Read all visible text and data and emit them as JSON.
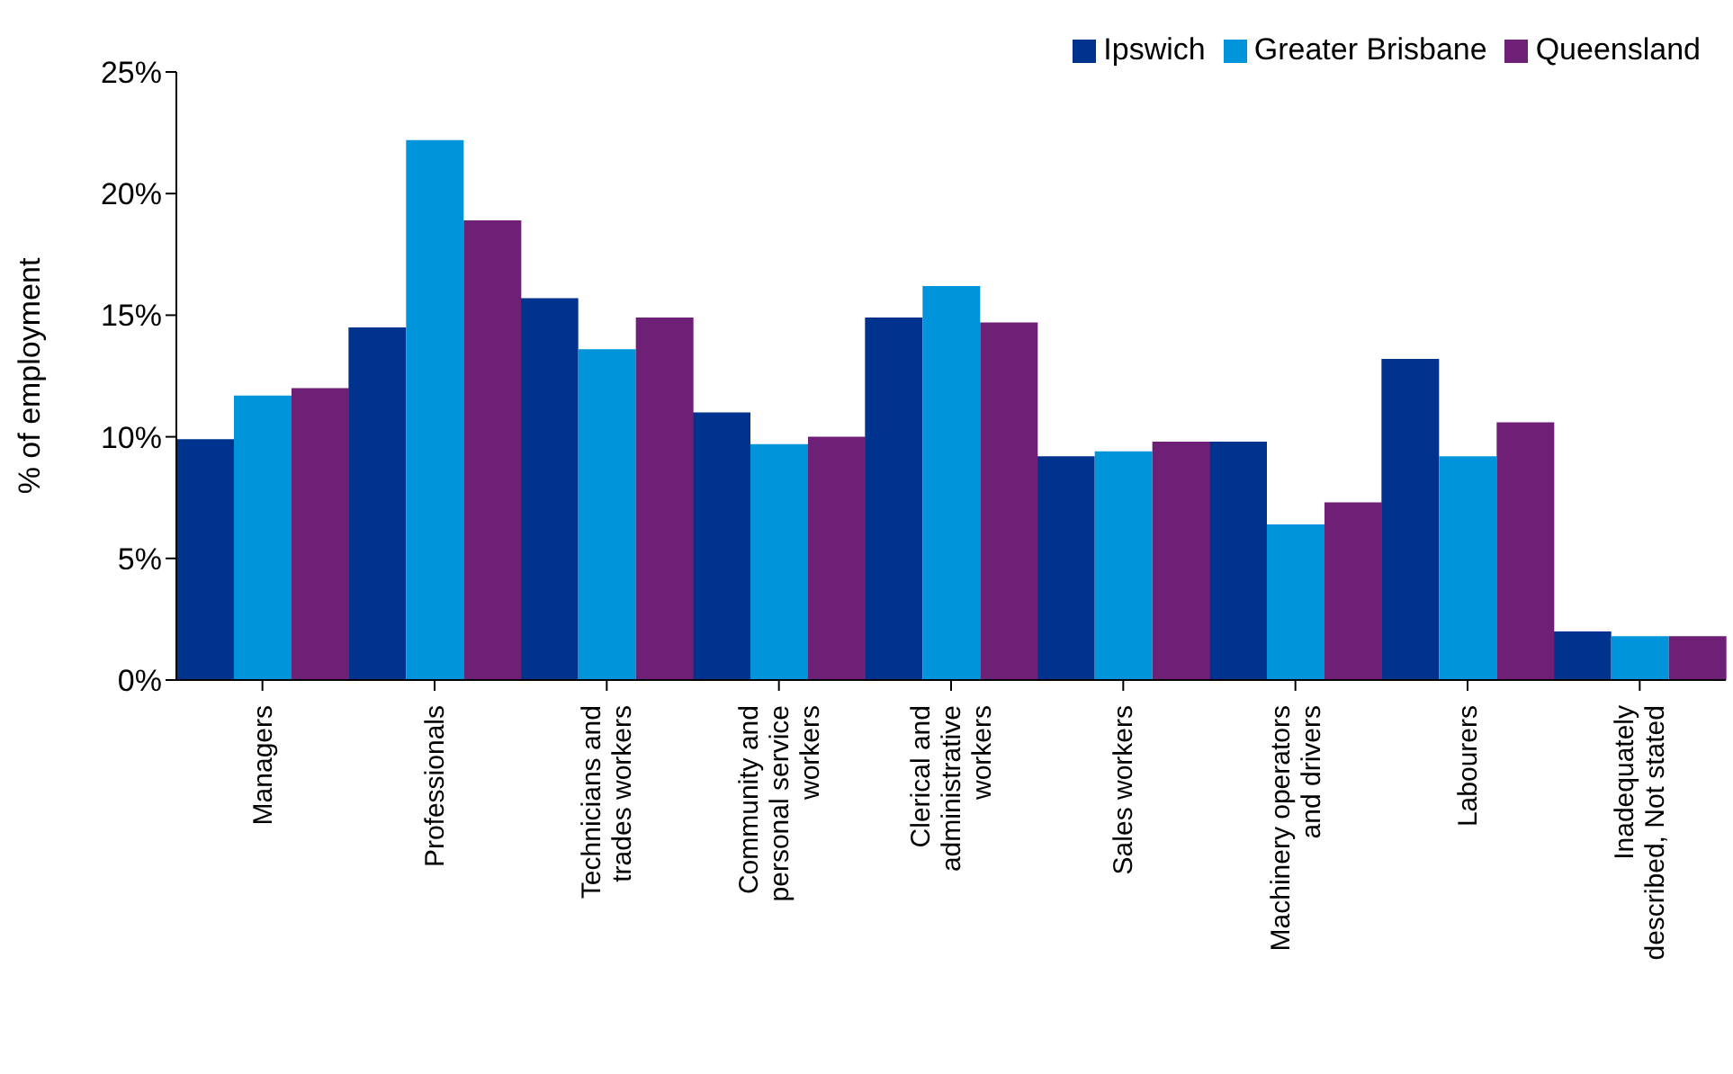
{
  "chart_data": {
    "type": "bar",
    "ylabel": "% of employment",
    "categories": [
      "Managers",
      "Professionals",
      "Technicians and trades workers",
      "Community and personal service workers",
      "Clerical and administrative workers",
      "Sales workers",
      "Machinery operators and drivers",
      "Labourers",
      "Inadequately described, Not stated"
    ],
    "series": [
      {
        "name": "Ipswich",
        "color": "#00338d",
        "values": [
          9.9,
          14.5,
          15.7,
          11.0,
          14.9,
          9.2,
          9.8,
          13.2,
          2.0
        ]
      },
      {
        "name": "Greater Brisbane",
        "color": "#0095da",
        "values": [
          11.7,
          22.2,
          13.6,
          9.7,
          16.2,
          9.4,
          6.4,
          9.2,
          1.8
        ]
      },
      {
        "name": "Queensland",
        "color": "#6e1f76",
        "values": [
          12.0,
          18.9,
          14.9,
          10.0,
          14.7,
          9.8,
          7.3,
          10.6,
          1.8
        ]
      }
    ],
    "ylim": [
      0,
      25
    ],
    "yticks": [
      {
        "value": 0,
        "label": "0%"
      },
      {
        "value": 5,
        "label": "5%"
      },
      {
        "value": 10,
        "label": "10%"
      },
      {
        "value": 15,
        "label": "15%"
      },
      {
        "value": 20,
        "label": "20%"
      },
      {
        "value": 25,
        "label": "25%"
      }
    ],
    "grid": false,
    "legend": "top right"
  }
}
